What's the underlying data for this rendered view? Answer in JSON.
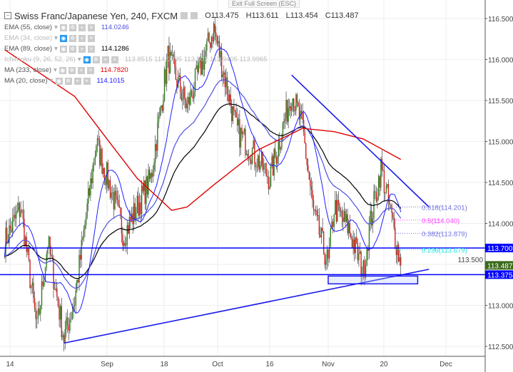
{
  "header": {
    "title": "Swiss Franc/Japanese Yen, 240, FXCM",
    "open": "O113.475",
    "high": "H113.611",
    "low": "L113.454",
    "close": "C113.487",
    "tooltip": "Exit Full Screen (ESC)"
  },
  "indicators": [
    {
      "label": "EMA (55, close)",
      "value": "114.0246",
      "color": "#5050e0",
      "faded": false
    },
    {
      "label": "EMA (34, close)",
      "value": "",
      "color": "#bbbbbb",
      "faded": true
    },
    {
      "label": "EMA (89, close)",
      "value": "114.1286",
      "color": "#000000",
      "faded": false
    },
    {
      "label": "Ichimoku (9, 26, 52, 26)",
      "value": "113.8515  114.0295  113.502  113.9405  113.9965",
      "color": "#bbbbbb",
      "faded": true
    },
    {
      "label": "MA (233, close)",
      "value": "114.7820",
      "color": "#e00000",
      "faded": false
    },
    {
      "label": "MA (20, close)",
      "value": "114.1015",
      "color": "#2020ff",
      "faded": false
    }
  ],
  "chart_data": {
    "type": "candlestick",
    "symbol": "CHFJPY",
    "timeframe": "240",
    "ylim": [
      112.4,
      116.6
    ],
    "y_ticks": [
      "116.500",
      "116.000",
      "115.500",
      "115.000",
      "114.500",
      "114.000",
      "113.500",
      "113.000",
      "112.500"
    ],
    "x_ticks": [
      {
        "date": "2017-08-14",
        "label": "14"
      },
      {
        "date": "2017-09-01",
        "label": "Sep"
      },
      {
        "date": "2017-09-18",
        "label": "18"
      },
      {
        "date": "2017-10-02",
        "label": "Oct"
      },
      {
        "date": "2017-10-16",
        "label": "16"
      },
      {
        "date": "2017-11-01",
        "label": "Nov"
      },
      {
        "date": "2017-11-20",
        "label": "20"
      },
      {
        "date": "2017-12-01",
        "label": "Dec"
      }
    ],
    "price_path": [
      {
        "date": "2017-08-13",
        "close": 113.77
      },
      {
        "date": "2017-08-16",
        "close": 114.2
      },
      {
        "date": "2017-08-19",
        "close": 112.7
      },
      {
        "date": "2017-08-21",
        "close": 113.77
      },
      {
        "date": "2017-08-24",
        "close": 112.6
      },
      {
        "date": "2017-08-26",
        "close": 113.07
      },
      {
        "date": "2017-08-30",
        "close": 114.98
      },
      {
        "date": "2017-09-03",
        "close": 114.3
      },
      {
        "date": "2017-09-06",
        "close": 113.85
      },
      {
        "date": "2017-09-14",
        "close": 114.55
      },
      {
        "date": "2017-09-19",
        "close": 116.03
      },
      {
        "date": "2017-09-24",
        "close": 115.42
      },
      {
        "date": "2017-10-01",
        "close": 116.38
      },
      {
        "date": "2017-10-07",
        "close": 115.15
      },
      {
        "date": "2017-10-11",
        "close": 114.9
      },
      {
        "date": "2017-10-16",
        "close": 114.55
      },
      {
        "date": "2017-10-19",
        "close": 115.07
      },
      {
        "date": "2017-10-22",
        "close": 115.6
      },
      {
        "date": "2017-10-25",
        "close": 115.16
      },
      {
        "date": "2017-10-28",
        "close": 114.12
      },
      {
        "date": "2017-11-01",
        "close": 113.5
      },
      {
        "date": "2017-11-03",
        "close": 114.2
      },
      {
        "date": "2017-11-08",
        "close": 113.94
      },
      {
        "date": "2017-11-13",
        "close": 113.4
      },
      {
        "date": "2017-11-15",
        "close": 113.94
      },
      {
        "date": "2017-11-19",
        "close": 114.68
      },
      {
        "date": "2017-11-21",
        "close": 114.2
      },
      {
        "date": "2017-11-23",
        "close": 113.487
      }
    ],
    "ma233_path": [
      {
        "date": "2017-08-13",
        "v": 116.12
      },
      {
        "date": "2017-08-26",
        "v": 115.55
      },
      {
        "date": "2017-09-01",
        "v": 115.03
      },
      {
        "date": "2017-09-10",
        "v": 114.55
      },
      {
        "date": "2017-09-20",
        "v": 114.16
      },
      {
        "date": "2017-09-24",
        "v": 114.2
      },
      {
        "date": "2017-10-01",
        "v": 114.47
      },
      {
        "date": "2017-10-13",
        "v": 114.9
      },
      {
        "date": "2017-10-25",
        "v": 115.16
      },
      {
        "date": "2017-11-03",
        "v": 115.12
      },
      {
        "date": "2017-11-13",
        "v": 115.03
      },
      {
        "date": "2017-11-23",
        "v": 114.78
      }
    ],
    "horizontal_lines": [
      {
        "price": 113.7,
        "label": "113.700",
        "color": "#0000ff"
      },
      {
        "price": 113.375,
        "label": "113.375",
        "color": "#0000ff"
      }
    ],
    "last_price": {
      "price": 113.487,
      "label": "113.487",
      "color": "#3a6a1a"
    },
    "trend_lines": [
      {
        "from": {
          "date": "2017-10-22",
          "price": 115.81
        },
        "to": {
          "date": "2017-11-28",
          "price": 114.2
        }
      },
      {
        "from": {
          "date": "2017-08-24",
          "price": 112.54
        },
        "to": {
          "date": "2017-11-28",
          "price": 113.44
        }
      }
    ],
    "zone": {
      "from": {
        "date": "2017-11-01",
        "price": 113.375
      },
      "to": {
        "date": "2017-11-26",
        "price": 113.28
      }
    },
    "fib_levels": [
      {
        "label": "0.618(114.201)",
        "price": 114.201,
        "color": "#6f6fe0"
      },
      {
        "label": "0.5(114.040)",
        "price": 114.04,
        "color": "#ff40ff"
      },
      {
        "label": "0.382(113.879)",
        "price": 113.879,
        "color": "#6f6fe0"
      },
      {
        "label": "0.236(113.679)",
        "price": 113.679,
        "color": "#20e0e0"
      }
    ],
    "grid": true
  }
}
